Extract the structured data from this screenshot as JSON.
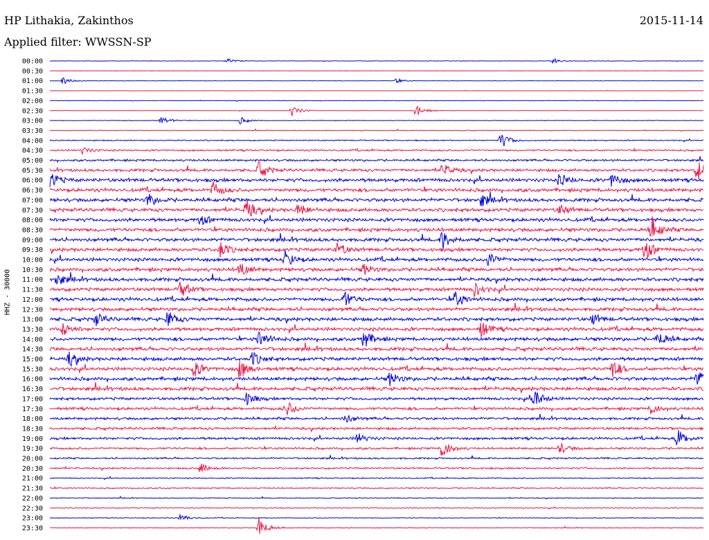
{
  "header": {
    "station": "HP Lithakia, Zakinthos",
    "date": "2015-11-14",
    "filter": "Applied filter: WWSSN-SP",
    "channel": "HHZ - 30000"
  },
  "colors": {
    "even_trace": "#0000dd",
    "odd_trace": "#ee1144"
  },
  "chart_data": {
    "type": "line",
    "title": "",
    "xlabel": "",
    "ylabel": "HHZ - 30000",
    "rows": [
      "00:00",
      "00:30",
      "01:00",
      "01:30",
      "02:00",
      "02:30",
      "03:00",
      "03:30",
      "04:00",
      "04:30",
      "05:00",
      "05:30",
      "06:00",
      "06:30",
      "07:00",
      "07:30",
      "08:00",
      "08:30",
      "09:00",
      "09:30",
      "10:00",
      "10:30",
      "11:00",
      "11:30",
      "12:00",
      "12:30",
      "13:00",
      "13:30",
      "14:00",
      "14:30",
      "15:00",
      "15:30",
      "16:00",
      "16:30",
      "17:00",
      "17:30",
      "18:00",
      "18:30",
      "19:00",
      "19:30",
      "20:00",
      "20:30",
      "21:00",
      "21:30",
      "22:00",
      "22:30",
      "23:00",
      "23:30"
    ],
    "noise_level": [
      0.3,
      0.2,
      0.3,
      0.2,
      0.4,
      0.3,
      0.4,
      0.5,
      0.8,
      1.2,
      1.5,
      2.0,
      2.5,
      2.5,
      2.5,
      2.5,
      2.5,
      2.5,
      2.5,
      2.5,
      2.5,
      2.5,
      2.5,
      2.5,
      2.5,
      2.5,
      2.5,
      2.5,
      2.5,
      2.5,
      2.5,
      2.5,
      2.5,
      2.5,
      2.0,
      2.0,
      1.8,
      1.8,
      1.8,
      1.5,
      1.2,
      1.2,
      0.8,
      0.8,
      0.6,
      0.6,
      0.5,
      0.5
    ],
    "events": [
      {
        "row": 0,
        "pos": 0.27,
        "amp": 4
      },
      {
        "row": 0,
        "pos": 0.77,
        "amp": 4
      },
      {
        "row": 2,
        "pos": 0.02,
        "amp": 5
      },
      {
        "row": 2,
        "pos": 0.53,
        "amp": 3
      },
      {
        "row": 5,
        "pos": 0.37,
        "amp": 8
      },
      {
        "row": 5,
        "pos": 0.56,
        "amp": 9
      },
      {
        "row": 6,
        "pos": 0.17,
        "amp": 7
      },
      {
        "row": 6,
        "pos": 0.29,
        "amp": 6
      },
      {
        "row": 8,
        "pos": 0.69,
        "amp": 12
      },
      {
        "row": 9,
        "pos": 0.05,
        "amp": 5
      },
      {
        "row": 11,
        "pos": 0.32,
        "amp": 12
      },
      {
        "row": 11,
        "pos": 0.6,
        "amp": 10
      },
      {
        "row": 11,
        "pos": 0.99,
        "amp": 16
      },
      {
        "row": 12,
        "pos": 0.0,
        "amp": 12
      },
      {
        "row": 12,
        "pos": 0.78,
        "amp": 10
      },
      {
        "row": 12,
        "pos": 0.86,
        "amp": 10
      },
      {
        "row": 13,
        "pos": 0.25,
        "amp": 12
      },
      {
        "row": 14,
        "pos": 0.15,
        "amp": 10
      },
      {
        "row": 14,
        "pos": 0.66,
        "amp": 10
      },
      {
        "row": 15,
        "pos": 0.3,
        "amp": 14
      },
      {
        "row": 15,
        "pos": 0.38,
        "amp": 10
      },
      {
        "row": 15,
        "pos": 0.78,
        "amp": 8
      },
      {
        "row": 16,
        "pos": 0.23,
        "amp": 8
      },
      {
        "row": 17,
        "pos": 0.92,
        "amp": 20
      },
      {
        "row": 18,
        "pos": 0.6,
        "amp": 14
      },
      {
        "row": 19,
        "pos": 0.26,
        "amp": 12
      },
      {
        "row": 19,
        "pos": 0.44,
        "amp": 10
      },
      {
        "row": 19,
        "pos": 0.91,
        "amp": 16
      },
      {
        "row": 20,
        "pos": 0.36,
        "amp": 12
      },
      {
        "row": 20,
        "pos": 0.67,
        "amp": 12
      },
      {
        "row": 21,
        "pos": 0.29,
        "amp": 10
      },
      {
        "row": 21,
        "pos": 0.48,
        "amp": 8
      },
      {
        "row": 22,
        "pos": 0.01,
        "amp": 10
      },
      {
        "row": 23,
        "pos": 0.2,
        "amp": 12
      },
      {
        "row": 23,
        "pos": 0.65,
        "amp": 10
      },
      {
        "row": 24,
        "pos": 0.45,
        "amp": 12
      },
      {
        "row": 24,
        "pos": 0.62,
        "amp": 12
      },
      {
        "row": 26,
        "pos": 0.07,
        "amp": 10
      },
      {
        "row": 26,
        "pos": 0.18,
        "amp": 12
      },
      {
        "row": 26,
        "pos": 0.83,
        "amp": 8
      },
      {
        "row": 27,
        "pos": 0.02,
        "amp": 10
      },
      {
        "row": 27,
        "pos": 0.66,
        "amp": 12
      },
      {
        "row": 28,
        "pos": 0.32,
        "amp": 14
      },
      {
        "row": 28,
        "pos": 0.48,
        "amp": 14
      },
      {
        "row": 28,
        "pos": 0.93,
        "amp": 12
      },
      {
        "row": 30,
        "pos": 0.03,
        "amp": 10
      },
      {
        "row": 30,
        "pos": 0.31,
        "amp": 10
      },
      {
        "row": 31,
        "pos": 0.22,
        "amp": 12
      },
      {
        "row": 31,
        "pos": 0.29,
        "amp": 14
      },
      {
        "row": 31,
        "pos": 0.86,
        "amp": 14
      },
      {
        "row": 32,
        "pos": 0.52,
        "amp": 10
      },
      {
        "row": 32,
        "pos": 0.99,
        "amp": 14
      },
      {
        "row": 34,
        "pos": 0.3,
        "amp": 10
      },
      {
        "row": 34,
        "pos": 0.74,
        "amp": 16
      },
      {
        "row": 35,
        "pos": 0.36,
        "amp": 14
      },
      {
        "row": 35,
        "pos": 0.92,
        "amp": 8
      },
      {
        "row": 36,
        "pos": 0.45,
        "amp": 8
      },
      {
        "row": 38,
        "pos": 0.47,
        "amp": 8
      },
      {
        "row": 38,
        "pos": 0.96,
        "amp": 14
      },
      {
        "row": 39,
        "pos": 0.6,
        "amp": 16
      },
      {
        "row": 39,
        "pos": 0.78,
        "amp": 8
      },
      {
        "row": 41,
        "pos": 0.23,
        "amp": 8
      },
      {
        "row": 46,
        "pos": 0.2,
        "amp": 6
      },
      {
        "row": 47,
        "pos": 0.32,
        "amp": 16
      }
    ],
    "xlim": [
      0,
      30
    ],
    "grid": false,
    "legend": "none"
  }
}
